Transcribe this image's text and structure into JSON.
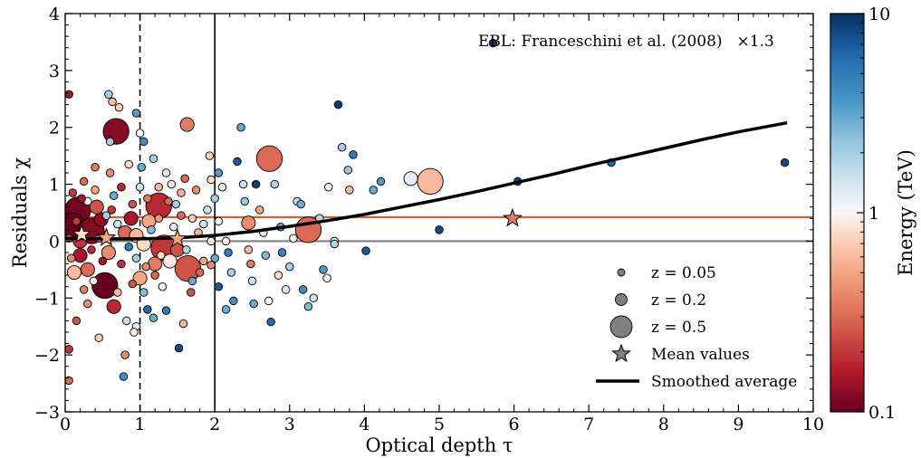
{
  "chart_data": {
    "type": "scatter",
    "xlabel": "Optical depth τ",
    "ylabel": "Residuals χ",
    "xlim": [
      0,
      10
    ],
    "ylim": [
      -3,
      4
    ],
    "x_ticks": [
      "0",
      "1",
      "2",
      "3",
      "4",
      "5",
      "6",
      "7",
      "8",
      "9",
      "10"
    ],
    "y_ticks": [
      "−3",
      "−2",
      "−1",
      "0",
      "1",
      "2",
      "3",
      "4"
    ],
    "annotation": "EBL: Franceschini et al. (2008)",
    "annotation_scale": "×1.3",
    "colorbar": {
      "label": "Energy (TeV)",
      "scale": "log",
      "range": [
        0.1,
        10
      ],
      "tick_labels": [
        "0.1",
        "1",
        "10"
      ],
      "colormap": "RdBu"
    },
    "reference_lines": {
      "dashed_vertical_x": 1,
      "solid_vertical_x": 2,
      "zero_line_y": 0,
      "zero_line_color": "#808080",
      "mean_line_y": 0.42,
      "mean_line_color": "#c8643c"
    },
    "smoothed_average": {
      "x": [
        0,
        0.5,
        1,
        1.5,
        2,
        2.5,
        3,
        3.5,
        4,
        4.5,
        5,
        5.5,
        6,
        6.5,
        7,
        7.5,
        8,
        8.5,
        9,
        9.65
      ],
      "y": [
        0.05,
        0.04,
        0.04,
        0.06,
        0.1,
        0.17,
        0.26,
        0.36,
        0.47,
        0.6,
        0.73,
        0.87,
        1.02,
        1.17,
        1.33,
        1.48,
        1.63,
        1.78,
        1.92,
        2.08
      ]
    },
    "mean_values": [
      {
        "x": 0.22,
        "y": 0.12,
        "energy": 0.8
      },
      {
        "x": 0.55,
        "y": 0.06,
        "energy": 0.5
      },
      {
        "x": 1.5,
        "y": 0.04,
        "energy": 0.5
      },
      {
        "x": 5.98,
        "y": 0.4,
        "energy": 0.35
      }
    ],
    "legend": [
      {
        "symbol": "circle-small",
        "label": "z = 0.05"
      },
      {
        "symbol": "circle-medium",
        "label": "z = 0.2"
      },
      {
        "symbol": "circle-large",
        "label": "z = 0.5"
      },
      {
        "symbol": "star",
        "label": "Mean values"
      },
      {
        "symbol": "line",
        "label": "Smoothed average"
      }
    ],
    "points": [
      {
        "x": 0.68,
        "y": 1.93,
        "z": 0.5,
        "e": 0.12
      },
      {
        "x": 1.63,
        "y": 2.05,
        "z": 0.2,
        "e": 0.35
      },
      {
        "x": 2.73,
        "y": 1.45,
        "z": 0.5,
        "e": 0.3
      },
      {
        "x": 4.88,
        "y": 1.05,
        "z": 0.5,
        "e": 0.6
      },
      {
        "x": 4.62,
        "y": 1.1,
        "z": 0.2,
        "e": 1.2
      },
      {
        "x": 1.25,
        "y": 0.62,
        "z": 0.5,
        "e": 0.18
      },
      {
        "x": 0.17,
        "y": 0.55,
        "z": 0.5,
        "e": 0.11
      },
      {
        "x": 0.1,
        "y": 0.27,
        "z": 0.5,
        "e": 0.1
      },
      {
        "x": 0.53,
        "y": -0.78,
        "z": 0.5,
        "e": 0.1
      },
      {
        "x": 1.64,
        "y": -0.48,
        "z": 0.5,
        "e": 0.25
      },
      {
        "x": 3.25,
        "y": 0.2,
        "z": 0.5,
        "e": 0.3
      },
      {
        "x": 1.32,
        "y": -0.12,
        "z": 0.5,
        "e": 0.2
      },
      {
        "x": 0.65,
        "y": -1.15,
        "z": 0.2,
        "e": 0.18
      },
      {
        "x": 2.45,
        "y": 0.32,
        "z": 0.2,
        "e": 0.4
      },
      {
        "x": 0.35,
        "y": 0.18,
        "z": 0.5,
        "e": 0.12
      },
      {
        "x": 0.2,
        "y": -0.25,
        "z": 0.2,
        "e": 0.15
      },
      {
        "x": 0.8,
        "y": 0.15,
        "z": 0.2,
        "e": 0.3
      },
      {
        "x": 0.95,
        "y": 0.1,
        "z": 0.2,
        "e": 0.6
      },
      {
        "x": 1.05,
        "y": -0.05,
        "z": 0.2,
        "e": 0.8
      },
      {
        "x": 1.12,
        "y": 0.35,
        "z": 0.2,
        "e": 0.5
      },
      {
        "x": 1.4,
        "y": -0.35,
        "z": 0.2,
        "e": 0.9
      },
      {
        "x": 0.48,
        "y": 0.38,
        "z": 0.2,
        "e": 0.13
      },
      {
        "x": 0.1,
        "y": 0.85,
        "z": 0.05,
        "e": 0.2
      },
      {
        "x": 0.25,
        "y": 1.05,
        "z": 0.05,
        "e": 0.3
      },
      {
        "x": 0.4,
        "y": 0.9,
        "z": 0.05,
        "e": 0.5
      },
      {
        "x": 0.6,
        "y": 1.2,
        "z": 0.05,
        "e": 0.4
      },
      {
        "x": 0.58,
        "y": 2.58,
        "z": 0.05,
        "e": 2.0
      },
      {
        "x": 0.63,
        "y": 2.45,
        "z": 0.05,
        "e": 0.6
      },
      {
        "x": 0.05,
        "y": 2.58,
        "z": 0.05,
        "e": 0.15
      },
      {
        "x": 0.85,
        "y": 1.35,
        "z": 0.05,
        "e": 0.8
      },
      {
        "x": 1.0,
        "y": 0.95,
        "z": 0.05,
        "e": 1.5
      },
      {
        "x": 1.02,
        "y": 1.3,
        "z": 0.05,
        "e": 3.0
      },
      {
        "x": 0.9,
        "y": 0.65,
        "z": 0.05,
        "e": 0.25
      },
      {
        "x": 0.75,
        "y": -0.4,
        "z": 0.05,
        "e": 0.2
      },
      {
        "x": 0.7,
        "y": -0.9,
        "z": 0.05,
        "e": 0.6
      },
      {
        "x": 0.82,
        "y": -1.4,
        "z": 0.05,
        "e": 1.5
      },
      {
        "x": 0.8,
        "y": -2.0,
        "z": 0.05,
        "e": 0.4
      },
      {
        "x": 0.78,
        "y": -2.38,
        "z": 0.05,
        "e": 4.0
      },
      {
        "x": 0.05,
        "y": -2.45,
        "z": 0.05,
        "e": 0.3
      },
      {
        "x": 0.05,
        "y": -1.9,
        "z": 0.05,
        "e": 0.2
      },
      {
        "x": 0.15,
        "y": -1.4,
        "z": 0.05,
        "e": 0.25
      },
      {
        "x": 0.3,
        "y": -1.1,
        "z": 0.05,
        "e": 0.4
      },
      {
        "x": 0.38,
        "y": -0.7,
        "z": 0.05,
        "e": 0.9
      },
      {
        "x": 0.45,
        "y": -1.7,
        "z": 0.05,
        "e": 0.7
      },
      {
        "x": 0.95,
        "y": -1.5,
        "z": 0.05,
        "e": 1.2
      },
      {
        "x": 0.92,
        "y": -1.6,
        "z": 0.05,
        "e": 0.9
      },
      {
        "x": 1.05,
        "y": -0.9,
        "z": 0.05,
        "e": 2.5
      },
      {
        "x": 1.1,
        "y": -1.2,
        "z": 0.05,
        "e": 6.0
      },
      {
        "x": 1.18,
        "y": -1.35,
        "z": 0.05,
        "e": 3.0
      },
      {
        "x": 1.2,
        "y": -0.6,
        "z": 0.05,
        "e": 0.3
      },
      {
        "x": 1.3,
        "y": -0.8,
        "z": 0.05,
        "e": 1.1
      },
      {
        "x": 1.35,
        "y": -1.22,
        "z": 0.05,
        "e": 5.0
      },
      {
        "x": 1.52,
        "y": -1.88,
        "z": 0.05,
        "e": 8.0
      },
      {
        "x": 1.58,
        "y": -1.45,
        "z": 0.05,
        "e": 0.6
      },
      {
        "x": 1.68,
        "y": -0.9,
        "z": 0.05,
        "e": 0.25
      },
      {
        "x": 1.7,
        "y": -0.7,
        "z": 0.05,
        "e": 3.0
      },
      {
        "x": 1.85,
        "y": -0.35,
        "z": 0.05,
        "e": 0.5
      },
      {
        "x": 1.95,
        "y": -0.42,
        "z": 0.05,
        "e": 0.4
      },
      {
        "x": 1.9,
        "y": 0.55,
        "z": 0.05,
        "e": 1.5
      },
      {
        "x": 1.95,
        "y": 1.08,
        "z": 0.05,
        "e": 0.8
      },
      {
        "x": 1.93,
        "y": 1.5,
        "z": 0.05,
        "e": 0.7
      },
      {
        "x": 1.75,
        "y": 0.9,
        "z": 0.05,
        "e": 0.4
      },
      {
        "x": 1.6,
        "y": 1.1,
        "z": 0.05,
        "e": 0.3
      },
      {
        "x": 1.48,
        "y": 0.65,
        "z": 0.05,
        "e": 2.0
      },
      {
        "x": 1.42,
        "y": 1.0,
        "z": 0.05,
        "e": 0.9
      },
      {
        "x": 1.35,
        "y": 1.2,
        "z": 0.05,
        "e": 1.3
      },
      {
        "x": 1.25,
        "y": 0.95,
        "z": 0.05,
        "e": 0.6
      },
      {
        "x": 1.18,
        "y": 1.45,
        "z": 0.05,
        "e": 2.0
      },
      {
        "x": 1.05,
        "y": 1.75,
        "z": 0.05,
        "e": 4.0
      },
      {
        "x": 1.0,
        "y": 1.9,
        "z": 0.05,
        "e": 1.0
      },
      {
        "x": 0.95,
        "y": 2.25,
        "z": 0.05,
        "e": 3.5
      },
      {
        "x": 0.72,
        "y": 2.35,
        "z": 0.05,
        "e": 0.7
      },
      {
        "x": 0.6,
        "y": 1.75,
        "z": 0.05,
        "e": 2.0
      },
      {
        "x": 0.4,
        "y": 1.3,
        "z": 0.05,
        "e": 0.35
      },
      {
        "x": 0.3,
        "y": 0.7,
        "z": 0.05,
        "e": 1.0
      },
      {
        "x": 0.55,
        "y": 0.45,
        "z": 0.05,
        "e": 2.0
      },
      {
        "x": 0.65,
        "y": 0.8,
        "z": 0.05,
        "e": 3.0
      },
      {
        "x": 0.7,
        "y": 0.3,
        "z": 0.05,
        "e": 1.5
      },
      {
        "x": 0.85,
        "y": -0.1,
        "z": 0.05,
        "e": 5.0
      },
      {
        "x": 0.95,
        "y": -0.3,
        "z": 0.05,
        "e": 2.0
      },
      {
        "x": 1.08,
        "y": -0.45,
        "z": 0.05,
        "e": 0.4
      },
      {
        "x": 1.15,
        "y": 0.2,
        "z": 0.05,
        "e": 2.5
      },
      {
        "x": 1.28,
        "y": -0.25,
        "z": 0.05,
        "e": 0.8
      },
      {
        "x": 1.45,
        "y": 0.25,
        "z": 0.05,
        "e": 1.2
      },
      {
        "x": 1.55,
        "y": 0.45,
        "z": 0.05,
        "e": 0.3
      },
      {
        "x": 1.62,
        "y": -0.15,
        "z": 0.05,
        "e": 1.8
      },
      {
        "x": 1.78,
        "y": 0.15,
        "z": 0.05,
        "e": 0.6
      },
      {
        "x": 1.85,
        "y": 0.3,
        "z": 0.05,
        "e": 1.4
      },
      {
        "x": 1.95,
        "y": 0.0,
        "z": 0.05,
        "e": 0.9
      },
      {
        "x": 2.05,
        "y": -0.8,
        "z": 0.05,
        "e": 7.0
      },
      {
        "x": 2.0,
        "y": -0.3,
        "z": 0.05,
        "e": 3.0
      },
      {
        "x": 2.05,
        "y": 0.35,
        "z": 0.05,
        "e": 1.0
      },
      {
        "x": 2.0,
        "y": 0.75,
        "z": 0.05,
        "e": 2.0
      },
      {
        "x": 2.05,
        "y": 1.2,
        "z": 0.05,
        "e": 3.5
      },
      {
        "x": 2.1,
        "y": 0.95,
        "z": 0.05,
        "e": 1.2
      },
      {
        "x": 2.15,
        "y": 0.0,
        "z": 0.05,
        "e": 0.9
      },
      {
        "x": 2.18,
        "y": -0.2,
        "z": 0.05,
        "e": 5.0
      },
      {
        "x": 2.22,
        "y": -0.55,
        "z": 0.05,
        "e": 2.0
      },
      {
        "x": 2.25,
        "y": -1.05,
        "z": 0.05,
        "e": 4.0
      },
      {
        "x": 2.15,
        "y": -1.2,
        "z": 0.05,
        "e": 3.0
      },
      {
        "x": 2.3,
        "y": 1.4,
        "z": 0.05,
        "e": 7.0
      },
      {
        "x": 2.35,
        "y": 2.0,
        "z": 0.05,
        "e": 3.0
      },
      {
        "x": 2.38,
        "y": 1.0,
        "z": 0.05,
        "e": 1.6
      },
      {
        "x": 2.4,
        "y": 0.7,
        "z": 0.05,
        "e": 2.2
      },
      {
        "x": 2.45,
        "y": -0.15,
        "z": 0.05,
        "e": 0.6
      },
      {
        "x": 2.48,
        "y": -0.4,
        "z": 0.05,
        "e": 0.35
      },
      {
        "x": 2.5,
        "y": -0.7,
        "z": 0.05,
        "e": 1.5
      },
      {
        "x": 2.52,
        "y": -1.1,
        "z": 0.05,
        "e": 3.0
      },
      {
        "x": 2.55,
        "y": 1.0,
        "z": 0.05,
        "e": 9.0
      },
      {
        "x": 2.6,
        "y": 0.55,
        "z": 0.05,
        "e": 0.5
      },
      {
        "x": 2.65,
        "y": 0.15,
        "z": 0.05,
        "e": 1.2
      },
      {
        "x": 2.68,
        "y": -0.25,
        "z": 0.05,
        "e": 2.5
      },
      {
        "x": 2.72,
        "y": -1.05,
        "z": 0.05,
        "e": 1.0
      },
      {
        "x": 2.75,
        "y": -1.42,
        "z": 0.05,
        "e": 6.0
      },
      {
        "x": 2.8,
        "y": 1.0,
        "z": 0.05,
        "e": 1.8
      },
      {
        "x": 2.85,
        "y": -0.6,
        "z": 0.05,
        "e": 0.8
      },
      {
        "x": 2.88,
        "y": 0.25,
        "z": 0.05,
        "e": 3.2
      },
      {
        "x": 2.9,
        "y": -0.2,
        "z": 0.05,
        "e": 4.5
      },
      {
        "x": 2.95,
        "y": -0.85,
        "z": 0.05,
        "e": 1.3
      },
      {
        "x": 3.0,
        "y": -0.45,
        "z": 0.05,
        "e": 2.0
      },
      {
        "x": 3.05,
        "y": 0.05,
        "z": 0.05,
        "e": 1.1
      },
      {
        "x": 3.1,
        "y": 0.7,
        "z": 0.05,
        "e": 1.6
      },
      {
        "x": 3.15,
        "y": 0.65,
        "z": 0.05,
        "e": 2.8
      },
      {
        "x": 3.18,
        "y": -0.85,
        "z": 0.05,
        "e": 4.0
      },
      {
        "x": 3.25,
        "y": -1.15,
        "z": 0.05,
        "e": 2.5
      },
      {
        "x": 3.32,
        "y": -1.0,
        "z": 0.05,
        "e": 1.5
      },
      {
        "x": 3.4,
        "y": 0.4,
        "z": 0.05,
        "e": 1.8
      },
      {
        "x": 3.45,
        "y": -0.5,
        "z": 0.05,
        "e": 3.5
      },
      {
        "x": 3.5,
        "y": -0.65,
        "z": 0.05,
        "e": 1.0
      },
      {
        "x": 3.52,
        "y": 0.95,
        "z": 0.05,
        "e": 1.1
      },
      {
        "x": 3.6,
        "y": 0.0,
        "z": 0.05,
        "e": 1.3
      },
      {
        "x": 3.65,
        "y": 2.4,
        "z": 0.05,
        "e": 9.0
      },
      {
        "x": 3.7,
        "y": 1.65,
        "z": 0.05,
        "e": 2.0
      },
      {
        "x": 3.78,
        "y": 1.25,
        "z": 0.05,
        "e": 2.2
      },
      {
        "x": 3.85,
        "y": 1.52,
        "z": 0.05,
        "e": 5.0
      },
      {
        "x": 4.02,
        "y": -0.17,
        "z": 0.05,
        "e": 7.0
      },
      {
        "x": 4.12,
        "y": 0.9,
        "z": 0.05,
        "e": 3.0
      },
      {
        "x": 4.22,
        "y": 1.05,
        "z": 0.05,
        "e": 3.5
      },
      {
        "x": 5.0,
        "y": 0.2,
        "z": 0.05,
        "e": 8.0
      },
      {
        "x": 5.72,
        "y": 3.48,
        "z": 0.05,
        "e": 9.0
      },
      {
        "x": 6.05,
        "y": 1.05,
        "z": 0.05,
        "e": 8.0
      },
      {
        "x": 7.3,
        "y": 1.38,
        "z": 0.05,
        "e": 6.0
      },
      {
        "x": 9.62,
        "y": 1.38,
        "z": 0.05,
        "e": 8.0
      },
      {
        "x": 3.6,
        "y": -0.05,
        "z": 0.05,
        "e": 1.8
      },
      {
        "x": 3.8,
        "y": 0.9,
        "z": 0.05,
        "e": 0.6
      },
      {
        "x": 0.2,
        "y": 0.0,
        "z": 0.2,
        "e": 0.2
      },
      {
        "x": 0.3,
        "y": -0.5,
        "z": 0.2,
        "e": 0.3
      },
      {
        "x": 0.42,
        "y": 0.6,
        "z": 0.2,
        "e": 0.25
      },
      {
        "x": 0.58,
        "y": -0.2,
        "z": 0.2,
        "e": 0.4
      },
      {
        "x": 0.88,
        "y": 0.4,
        "z": 0.2,
        "e": 0.15
      },
      {
        "x": 1.0,
        "y": -0.65,
        "z": 0.2,
        "e": 0.5
      },
      {
        "x": 1.2,
        "y": -0.4,
        "z": 0.2,
        "e": 0.35
      },
      {
        "x": 1.5,
        "y": -0.15,
        "z": 0.2,
        "e": 0.25
      },
      {
        "x": 0.12,
        "y": -0.55,
        "z": 0.2,
        "e": 0.6
      },
      {
        "x": 0.35,
        "y": -0.15,
        "z": 0.05,
        "e": 0.18
      },
      {
        "x": 0.15,
        "y": 0.35,
        "z": 0.05,
        "e": 0.2
      },
      {
        "x": 0.05,
        "y": 0.05,
        "z": 0.05,
        "e": 0.25
      },
      {
        "x": 0.45,
        "y": 0.05,
        "z": 0.05,
        "e": 0.3
      },
      {
        "x": 0.5,
        "y": -0.35,
        "z": 0.05,
        "e": 0.15
      },
      {
        "x": 0.25,
        "y": -0.85,
        "z": 0.05,
        "e": 0.35
      },
      {
        "x": 0.08,
        "y": -0.3,
        "z": 0.05,
        "e": 0.4
      },
      {
        "x": 0.22,
        "y": 0.75,
        "z": 0.05,
        "e": 0.15
      },
      {
        "x": 0.62,
        "y": 0.55,
        "z": 0.05,
        "e": 0.2
      },
      {
        "x": 0.75,
        "y": 0.95,
        "z": 0.05,
        "e": 0.18
      },
      {
        "x": 0.9,
        "y": -0.75,
        "z": 0.05,
        "e": 0.25
      },
      {
        "x": 1.1,
        "y": 0.75,
        "z": 0.05,
        "e": 0.35
      },
      {
        "x": 1.25,
        "y": 0.4,
        "z": 0.05,
        "e": 0.45
      },
      {
        "x": 1.38,
        "y": 0.7,
        "z": 0.05,
        "e": 0.3
      },
      {
        "x": 1.55,
        "y": 0.85,
        "z": 0.05,
        "e": 0.55
      },
      {
        "x": 1.7,
        "y": 0.4,
        "z": 0.05,
        "e": 0.7
      },
      {
        "x": 1.8,
        "y": -0.55,
        "z": 0.05,
        "e": 0.3
      }
    ]
  }
}
